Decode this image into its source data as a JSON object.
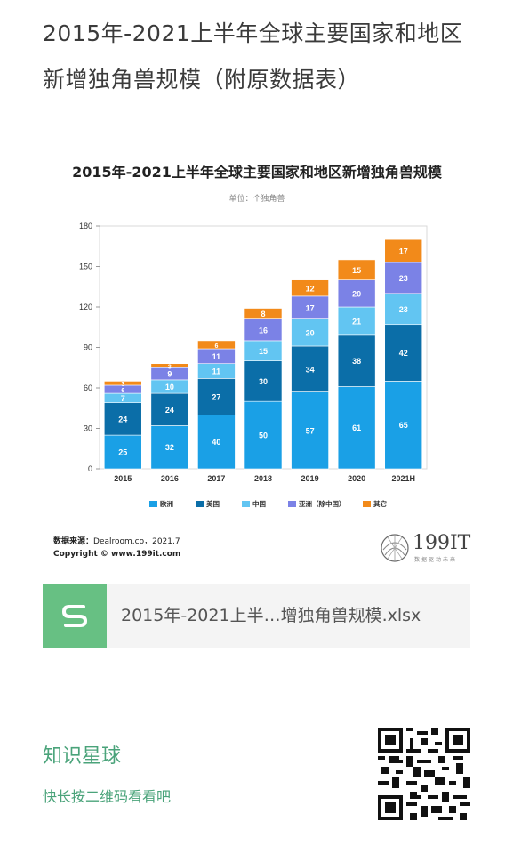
{
  "headline": {
    "line1": "2015年-2021上半年全球主要国家和地区",
    "line2": "新增独角兽规模（附原数据表）"
  },
  "chart": {
    "title": "2015年-2021上半年全球主要国家和地区新增独角兽规模",
    "unit": "单位：个独角兽"
  },
  "chart_data": {
    "type": "bar",
    "stacked": true,
    "categories": [
      "2015",
      "2016",
      "2017",
      "2018",
      "2019",
      "2020",
      "2021H"
    ],
    "ylim": [
      0,
      180
    ],
    "yticks": [
      0,
      30,
      60,
      90,
      120,
      150,
      180
    ],
    "grid": false,
    "legend_position": "bottom",
    "series": [
      {
        "name": "欧洲",
        "color": "#1aa0e6",
        "values": [
          25,
          32,
          40,
          50,
          57,
          61,
          65
        ]
      },
      {
        "name": "美国",
        "color": "#0b6ea8",
        "values": [
          24,
          24,
          27,
          30,
          34,
          38,
          42
        ]
      },
      {
        "name": "中国",
        "color": "#62c5f2",
        "values": [
          7,
          10,
          11,
          15,
          20,
          21,
          23
        ]
      },
      {
        "name": "亚洲（除中国）",
        "color": "#7b82e6",
        "values": [
          6,
          9,
          11,
          16,
          17,
          20,
          23
        ]
      },
      {
        "name": "其它",
        "color": "#f28a1a",
        "values": [
          3,
          3,
          6,
          8,
          12,
          15,
          17
        ]
      }
    ]
  },
  "source": {
    "label": "数据来源：",
    "text": "Dealroom.co，2021.7",
    "copyright": "Copyright © www.199it.com"
  },
  "logo": {
    "text": "199IT",
    "sub": "数据驱动未来"
  },
  "file": {
    "name": "2015年-2021上半…增独角兽规模.xlsx",
    "icon": "spreadsheet-s-icon",
    "icon_color": "#67c083"
  },
  "planet": {
    "title": "知识星球",
    "subtitle": "快长按二维码看看吧",
    "accent": "#4aa37a"
  }
}
